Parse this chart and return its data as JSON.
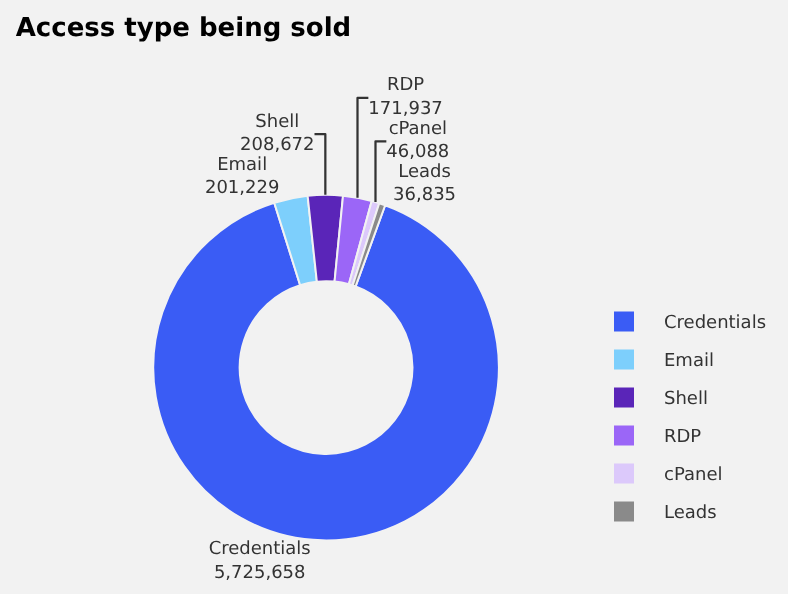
{
  "chart_data": {
    "type": "donut",
    "title": "Access type being sold",
    "categories": [
      "Credentials",
      "Email",
      "Shell",
      "RDP",
      "cPanel",
      "Leads"
    ],
    "values": [
      5725658,
      201229,
      208672,
      171937,
      46088,
      36835
    ],
    "colors": [
      "#3a5cf5",
      "#7dcffc",
      "#5a25b8",
      "#9b66f7",
      "#dcc9fb",
      "#8a8a8a"
    ],
    "value_labels": [
      "5,725,658",
      "201,229",
      "208,672",
      "171,937",
      "46,088",
      "36,835"
    ],
    "legend": "right"
  }
}
